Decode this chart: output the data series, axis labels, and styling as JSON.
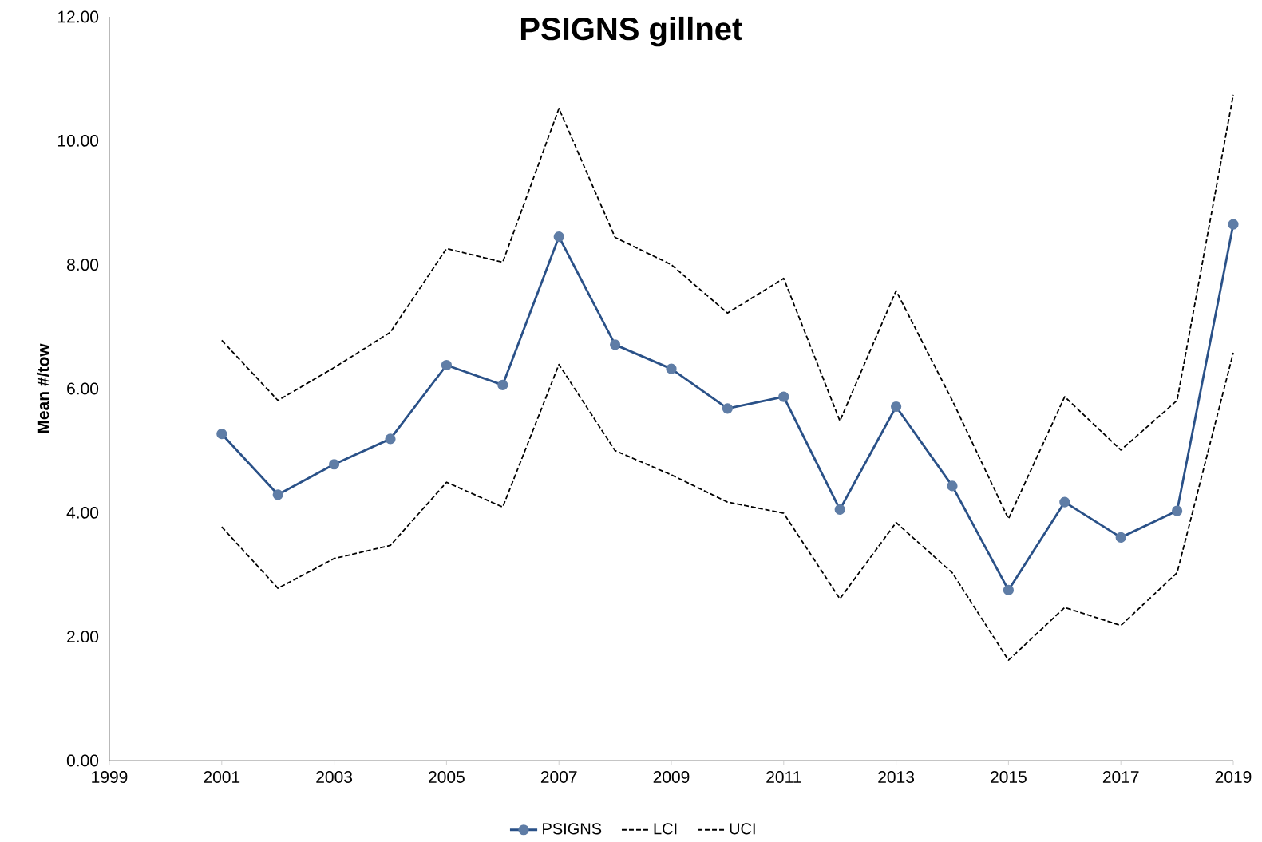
{
  "chart_data": {
    "type": "line",
    "title": "PSIGNS gillnet",
    "ylabel": "Mean #/tow",
    "x": [
      2001,
      2002,
      2003,
      2004,
      2005,
      2006,
      2007,
      2008,
      2009,
      2010,
      2011,
      2012,
      2013,
      2014,
      2015,
      2016,
      2017,
      2018,
      2019
    ],
    "series": [
      {
        "name": "PSIGNS",
        "color": "#2a5188",
        "marker": "circle",
        "line_style": "solid",
        "values": [
          5.27,
          4.29,
          4.78,
          5.19,
          6.38,
          6.06,
          8.45,
          6.71,
          6.32,
          5.68,
          5.87,
          4.05,
          5.71,
          4.43,
          2.75,
          4.17,
          3.6,
          4.03,
          8.65
        ]
      },
      {
        "name": "LCI",
        "color": "#000000",
        "marker": "none",
        "line_style": "dashed",
        "values": [
          3.77,
          2.78,
          3.26,
          3.47,
          4.49,
          4.09,
          6.39,
          5.0,
          4.61,
          4.17,
          3.99,
          2.61,
          3.84,
          3.03,
          1.62,
          2.47,
          2.18,
          3.03,
          6.58
        ]
      },
      {
        "name": "UCI",
        "color": "#000000",
        "marker": "none",
        "line_style": "dashed",
        "values": [
          6.78,
          5.81,
          6.34,
          6.91,
          8.26,
          8.04,
          10.52,
          8.44,
          8.0,
          7.22,
          7.78,
          5.48,
          7.58,
          5.81,
          3.9,
          5.87,
          5.01,
          5.81,
          10.74
        ]
      }
    ],
    "xlim": [
      1999,
      2019
    ],
    "xticks": [
      1999,
      2001,
      2003,
      2005,
      2007,
      2009,
      2011,
      2013,
      2015,
      2017,
      2019
    ],
    "ylim": [
      0,
      12
    ],
    "yticks": [
      {
        "value": 0,
        "label": "0.00"
      },
      {
        "value": 2,
        "label": "2.00"
      },
      {
        "value": 4,
        "label": "4.00"
      },
      {
        "value": 6,
        "label": "6.00"
      },
      {
        "value": 8,
        "label": "8.00"
      },
      {
        "value": 10,
        "label": "10.00"
      },
      {
        "value": 12,
        "label": "12.00"
      }
    ],
    "grid": false,
    "legend": "bottom"
  }
}
